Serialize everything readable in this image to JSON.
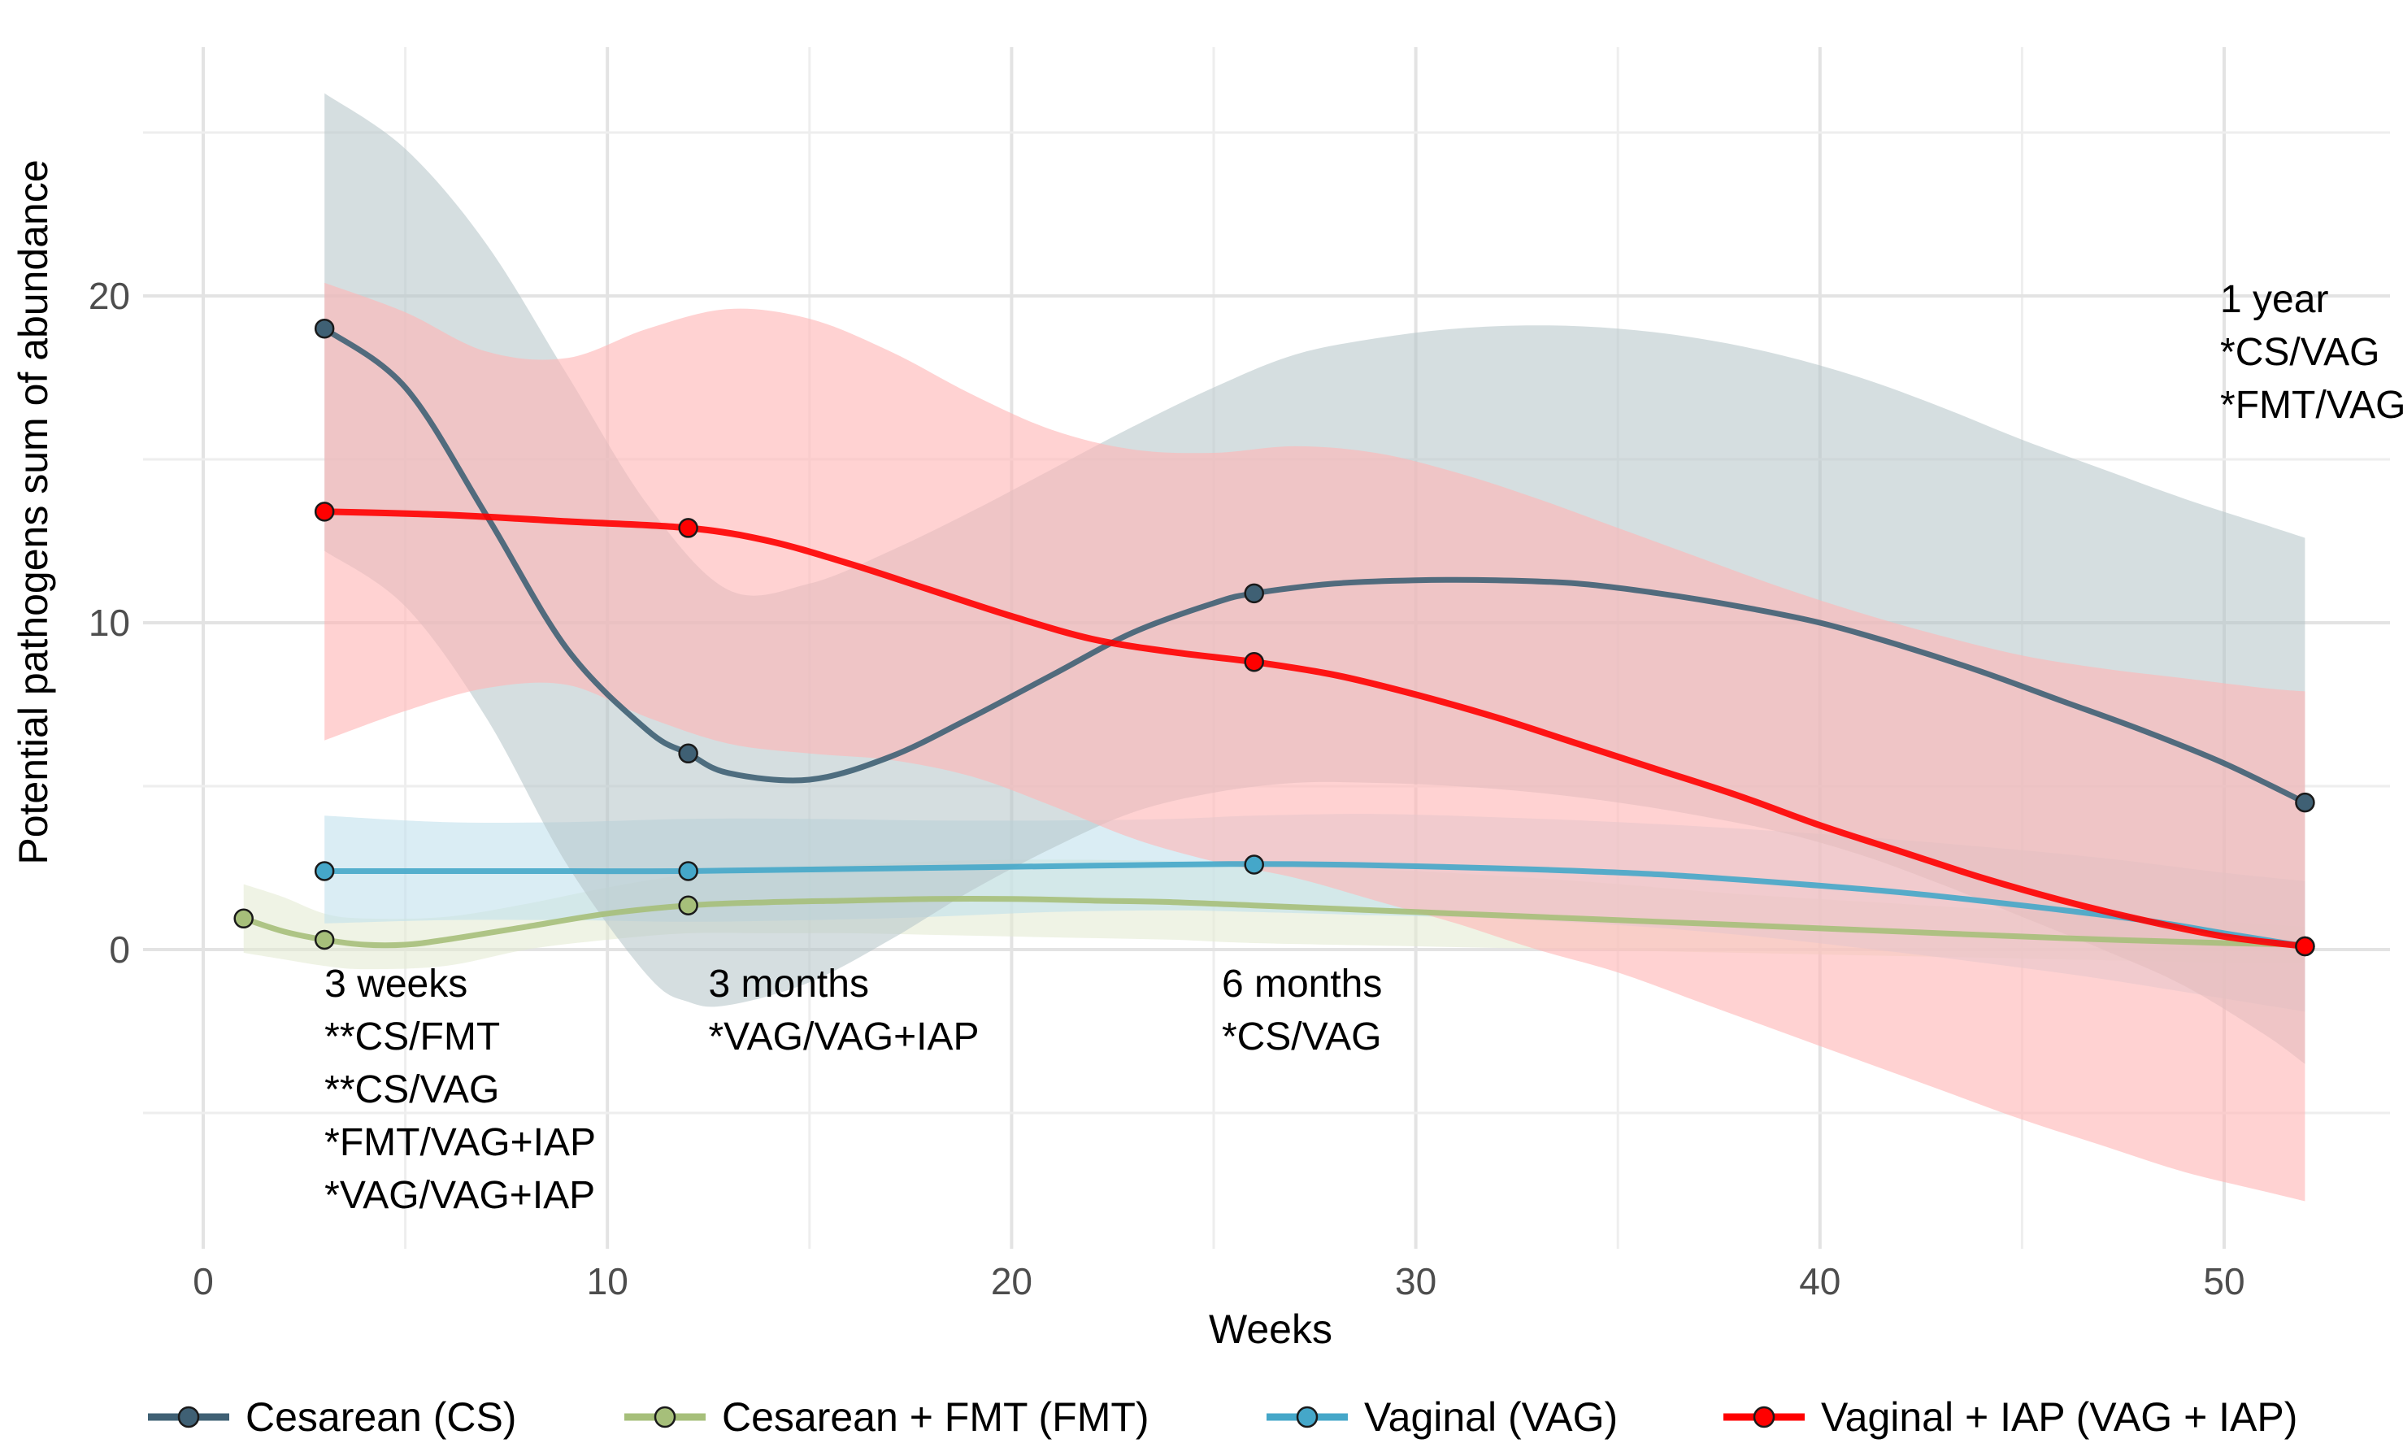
{
  "chart_data": {
    "type": "line",
    "title": "",
    "xlabel": "Weeks",
    "ylabel": "Potential pathogens sum of abundance",
    "xlim": [
      -1,
      54
    ],
    "ylim": [
      -9,
      28
    ],
    "xticks": [
      0,
      10,
      20,
      30,
      40,
      50
    ],
    "yticks": [
      0,
      10,
      20
    ],
    "xtick_labels": [
      "0",
      "10",
      "20",
      "30",
      "40",
      "50"
    ],
    "ytick_labels": [
      "0",
      "10",
      "20"
    ],
    "grid": true,
    "legend_position": "bottom",
    "series": [
      {
        "name": "Cesarean (CS)",
        "color": "#3f6074",
        "band_color": "#b7c7ca",
        "points": [
          {
            "x": 3,
            "y": 19.0
          },
          {
            "x": 12,
            "y": 6.0
          },
          {
            "x": 26,
            "y": 10.9
          },
          {
            "x": 52,
            "y": 4.5
          }
        ],
        "curve": [
          [
            3,
            19.0
          ],
          [
            5,
            17.2
          ],
          [
            7,
            13.3
          ],
          [
            9,
            9.2
          ],
          [
            11,
            6.7
          ],
          [
            12,
            6.0
          ],
          [
            13,
            5.4
          ],
          [
            15,
            5.2
          ],
          [
            17,
            5.9
          ],
          [
            19,
            7.1
          ],
          [
            21,
            8.4
          ],
          [
            23,
            9.7
          ],
          [
            25,
            10.6
          ],
          [
            26,
            10.9
          ],
          [
            28,
            11.2
          ],
          [
            30,
            11.3
          ],
          [
            32,
            11.3
          ],
          [
            34,
            11.2
          ],
          [
            36,
            10.9
          ],
          [
            38,
            10.5
          ],
          [
            40,
            10.0
          ],
          [
            42,
            9.3
          ],
          [
            44,
            8.5
          ],
          [
            46,
            7.6
          ],
          [
            48,
            6.7
          ],
          [
            50,
            5.7
          ],
          [
            52,
            4.5
          ]
        ],
        "upper": [
          [
            3,
            26.2
          ],
          [
            5,
            24.5
          ],
          [
            7,
            21.6
          ],
          [
            9,
            17.6
          ],
          [
            11,
            13.6
          ],
          [
            13,
            11.0
          ],
          [
            15,
            11.2
          ],
          [
            17,
            12.2
          ],
          [
            19,
            13.4
          ],
          [
            21,
            14.7
          ],
          [
            23,
            16.0
          ],
          [
            25,
            17.2
          ],
          [
            27,
            18.2
          ],
          [
            29,
            18.7
          ],
          [
            31,
            19.0
          ],
          [
            33,
            19.1
          ],
          [
            35,
            19.0
          ],
          [
            37,
            18.7
          ],
          [
            39,
            18.2
          ],
          [
            41,
            17.5
          ],
          [
            43,
            16.6
          ],
          [
            45,
            15.6
          ],
          [
            47,
            14.7
          ],
          [
            49,
            13.8
          ],
          [
            51,
            13.0
          ],
          [
            52,
            12.6
          ]
        ],
        "lower": [
          [
            3,
            12.2
          ],
          [
            5,
            10.5
          ],
          [
            7,
            7.1
          ],
          [
            9,
            2.6
          ],
          [
            11,
            -0.8
          ],
          [
            12,
            -1.6
          ],
          [
            13,
            -1.7
          ],
          [
            15,
            -1.0
          ],
          [
            17,
            0.3
          ],
          [
            19,
            1.8
          ],
          [
            21,
            3.1
          ],
          [
            23,
            4.2
          ],
          [
            25,
            4.8
          ],
          [
            27,
            5.1
          ],
          [
            29,
            5.1
          ],
          [
            31,
            5.0
          ],
          [
            33,
            4.8
          ],
          [
            35,
            4.5
          ],
          [
            37,
            4.1
          ],
          [
            39,
            3.6
          ],
          [
            41,
            2.9
          ],
          [
            43,
            2.0
          ],
          [
            45,
            1.0
          ],
          [
            47,
            0.0
          ],
          [
            49,
            -1.1
          ],
          [
            51,
            -2.6
          ],
          [
            52,
            -3.5
          ]
        ]
      },
      {
        "name": "Cesarean + FMT (FMT)",
        "color": "#a6bf7a",
        "band_color": "#e4ebd2",
        "points": [
          {
            "x": 1,
            "y": 0.95
          },
          {
            "x": 3,
            "y": 0.3
          },
          {
            "x": 12,
            "y": 1.35
          }
        ],
        "curve": [
          [
            1,
            0.95
          ],
          [
            2,
            0.55
          ],
          [
            3,
            0.3
          ],
          [
            4,
            0.15
          ],
          [
            5,
            0.15
          ],
          [
            6,
            0.3
          ],
          [
            8,
            0.7
          ],
          [
            10,
            1.1
          ],
          [
            12,
            1.35
          ],
          [
            14,
            1.45
          ],
          [
            16,
            1.5
          ],
          [
            18,
            1.55
          ],
          [
            20,
            1.55
          ],
          [
            22,
            1.5
          ],
          [
            24,
            1.45
          ],
          [
            26,
            1.35
          ],
          [
            30,
            1.15
          ],
          [
            34,
            0.95
          ],
          [
            38,
            0.75
          ],
          [
            42,
            0.55
          ],
          [
            46,
            0.35
          ],
          [
            50,
            0.2
          ],
          [
            52,
            0.15
          ]
        ],
        "upper": [
          [
            1,
            2.0
          ],
          [
            2,
            1.6
          ],
          [
            3,
            1.1
          ],
          [
            4,
            0.95
          ],
          [
            6,
            1.0
          ],
          [
            8,
            1.4
          ],
          [
            10,
            1.9
          ],
          [
            12,
            2.3
          ],
          [
            14,
            2.5
          ],
          [
            16,
            2.6
          ],
          [
            18,
            2.7
          ],
          [
            20,
            2.75
          ],
          [
            22,
            2.75
          ],
          [
            24,
            2.7
          ],
          [
            26,
            2.6
          ],
          [
            30,
            2.4
          ],
          [
            34,
            2.1
          ],
          [
            38,
            1.7
          ],
          [
            42,
            1.4
          ],
          [
            46,
            1.1
          ],
          [
            50,
            0.85
          ],
          [
            52,
            0.7
          ]
        ],
        "lower": [
          [
            1,
            -0.1
          ],
          [
            2,
            -0.3
          ],
          [
            3,
            -0.5
          ],
          [
            4,
            -0.6
          ],
          [
            6,
            -0.5
          ],
          [
            8,
            0.0
          ],
          [
            10,
            0.3
          ],
          [
            12,
            0.5
          ],
          [
            14,
            0.5
          ],
          [
            16,
            0.5
          ],
          [
            18,
            0.45
          ],
          [
            20,
            0.4
          ],
          [
            22,
            0.35
          ],
          [
            24,
            0.3
          ],
          [
            26,
            0.2
          ],
          [
            30,
            0.1
          ],
          [
            34,
            0.0
          ],
          [
            38,
            -0.1
          ],
          [
            42,
            -0.2
          ],
          [
            46,
            -0.3
          ],
          [
            50,
            -0.4
          ],
          [
            52,
            -0.4
          ]
        ]
      },
      {
        "name": "Vaginal (VAG)",
        "color": "#45a7c9",
        "band_color": "#bfe0ec",
        "points": [
          {
            "x": 3,
            "y": 2.4
          },
          {
            "x": 12,
            "y": 2.4
          },
          {
            "x": 26,
            "y": 2.6
          },
          {
            "x": 52,
            "y": 0.1
          }
        ],
        "curve": [
          [
            3,
            2.4
          ],
          [
            6,
            2.4
          ],
          [
            9,
            2.4
          ],
          [
            12,
            2.4
          ],
          [
            15,
            2.45
          ],
          [
            18,
            2.5
          ],
          [
            21,
            2.55
          ],
          [
            24,
            2.6
          ],
          [
            26,
            2.62
          ],
          [
            28,
            2.6
          ],
          [
            30,
            2.55
          ],
          [
            33,
            2.45
          ],
          [
            36,
            2.3
          ],
          [
            39,
            2.05
          ],
          [
            42,
            1.75
          ],
          [
            45,
            1.35
          ],
          [
            48,
            0.9
          ],
          [
            50,
            0.5
          ],
          [
            52,
            0.1
          ]
        ],
        "upper": [
          [
            3,
            4.1
          ],
          [
            6,
            3.9
          ],
          [
            9,
            3.9
          ],
          [
            12,
            4.0
          ],
          [
            15,
            4.0
          ],
          [
            18,
            3.95
          ],
          [
            21,
            3.95
          ],
          [
            24,
            4.0
          ],
          [
            26,
            4.1
          ],
          [
            29,
            4.15
          ],
          [
            32,
            4.05
          ],
          [
            35,
            3.9
          ],
          [
            38,
            3.7
          ],
          [
            41,
            3.45
          ],
          [
            44,
            3.15
          ],
          [
            47,
            2.8
          ],
          [
            50,
            2.35
          ],
          [
            52,
            2.1
          ]
        ],
        "lower": [
          [
            3,
            0.8
          ],
          [
            6,
            0.9
          ],
          [
            9,
            0.9
          ],
          [
            12,
            0.85
          ],
          [
            15,
            0.9
          ],
          [
            18,
            1.0
          ],
          [
            21,
            1.15
          ],
          [
            24,
            1.2
          ],
          [
            26,
            1.15
          ],
          [
            29,
            1.05
          ],
          [
            32,
            0.95
          ],
          [
            35,
            0.75
          ],
          [
            38,
            0.45
          ],
          [
            41,
            0.05
          ],
          [
            44,
            -0.4
          ],
          [
            47,
            -0.9
          ],
          [
            50,
            -1.5
          ],
          [
            52,
            -1.9
          ]
        ]
      },
      {
        "name": "Vaginal + IAP (VAG + IAP)",
        "color": "#ff0000",
        "band_color": "#ffb6b6",
        "points": [
          {
            "x": 3,
            "y": 13.4
          },
          {
            "x": 12,
            "y": 12.9
          },
          {
            "x": 26,
            "y": 8.8
          },
          {
            "x": 52,
            "y": 0.1
          }
        ],
        "curve": [
          [
            3,
            13.4
          ],
          [
            6,
            13.3
          ],
          [
            9,
            13.1
          ],
          [
            12,
            12.9
          ],
          [
            14,
            12.5
          ],
          [
            16,
            11.8
          ],
          [
            18,
            11.0
          ],
          [
            20,
            10.2
          ],
          [
            22,
            9.5
          ],
          [
            24,
            9.1
          ],
          [
            26,
            8.8
          ],
          [
            28,
            8.4
          ],
          [
            30,
            7.8
          ],
          [
            32,
            7.1
          ],
          [
            34,
            6.3
          ],
          [
            36,
            5.5
          ],
          [
            38,
            4.7
          ],
          [
            40,
            3.8
          ],
          [
            42,
            3.0
          ],
          [
            44,
            2.2
          ],
          [
            46,
            1.5
          ],
          [
            48,
            0.9
          ],
          [
            50,
            0.4
          ],
          [
            52,
            0.1
          ]
        ],
        "upper": [
          [
            3,
            20.4
          ],
          [
            5,
            19.5
          ],
          [
            7,
            18.3
          ],
          [
            9,
            18.1
          ],
          [
            11,
            19.0
          ],
          [
            13,
            19.6
          ],
          [
            15,
            19.3
          ],
          [
            17,
            18.3
          ],
          [
            19,
            17.0
          ],
          [
            21,
            15.9
          ],
          [
            23,
            15.3
          ],
          [
            25,
            15.2
          ],
          [
            27,
            15.4
          ],
          [
            29,
            15.2
          ],
          [
            31,
            14.6
          ],
          [
            33,
            13.8
          ],
          [
            35,
            12.9
          ],
          [
            37,
            12.0
          ],
          [
            39,
            11.1
          ],
          [
            41,
            10.3
          ],
          [
            43,
            9.6
          ],
          [
            45,
            9.0
          ],
          [
            47,
            8.6
          ],
          [
            49,
            8.3
          ],
          [
            51,
            8.0
          ],
          [
            52,
            7.9
          ]
        ],
        "lower": [
          [
            3,
            6.4
          ],
          [
            5,
            7.3
          ],
          [
            7,
            8.0
          ],
          [
            9,
            8.1
          ],
          [
            11,
            7.1
          ],
          [
            13,
            6.3
          ],
          [
            15,
            6.0
          ],
          [
            17,
            5.8
          ],
          [
            19,
            5.3
          ],
          [
            21,
            4.4
          ],
          [
            23,
            3.4
          ],
          [
            25,
            2.7
          ],
          [
            27,
            2.2
          ],
          [
            29,
            1.5
          ],
          [
            31,
            0.8
          ],
          [
            33,
            0.0
          ],
          [
            35,
            -0.7
          ],
          [
            37,
            -1.6
          ],
          [
            39,
            -2.5
          ],
          [
            41,
            -3.4
          ],
          [
            43,
            -4.3
          ],
          [
            45,
            -5.2
          ],
          [
            47,
            -6.0
          ],
          [
            49,
            -6.8
          ],
          [
            51,
            -7.4
          ],
          [
            52,
            -7.7
          ]
        ]
      }
    ],
    "annotations": [
      {
        "x": 3,
        "y": -0.35,
        "lines": [
          "3 weeks",
          "**CS/FMT",
          "**CS/VAG",
          "*FMT/VAG+IAP",
          "*VAG/VAG+IAP"
        ]
      },
      {
        "x": 12.5,
        "y": -0.35,
        "lines": [
          "3 months",
          "*VAG/VAG+IAP"
        ]
      },
      {
        "x": 25.2,
        "y": -0.35,
        "lines": [
          "6 months",
          "*CS/VAG"
        ]
      },
      {
        "x": 49.9,
        "y": 20.6,
        "lines": [
          "1 year",
          "*CS/VAG",
          "*FMT/VAG"
        ]
      }
    ]
  }
}
